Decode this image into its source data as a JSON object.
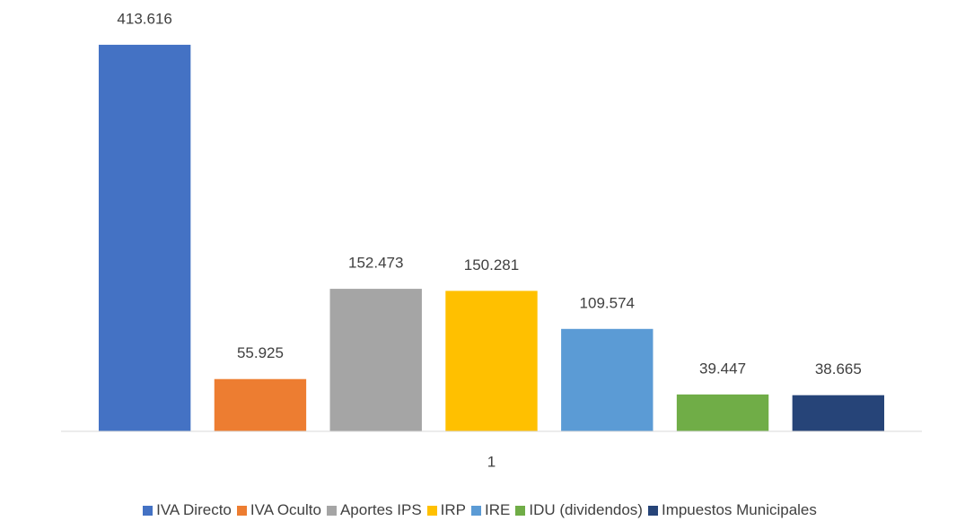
{
  "chart_data": {
    "type": "bar",
    "categories": [
      "1"
    ],
    "series": [
      {
        "name": "IVA Directo",
        "color": "#4472c4",
        "values": [
          413.616
        ]
      },
      {
        "name": "IVA Oculto",
        "color": "#ed7d31",
        "values": [
          55.925
        ]
      },
      {
        "name": "Aportes IPS",
        "color": "#a5a5a5",
        "values": [
          152.473
        ]
      },
      {
        "name": "IRP",
        "color": "#ffc000",
        "values": [
          150.281
        ]
      },
      {
        "name": "IRE",
        "color": "#5b9bd5",
        "values": [
          109.574
        ]
      },
      {
        "name": "IDU (dividendos)",
        "color": "#70ad47",
        "values": [
          39.447
        ]
      },
      {
        "name": "Impuestos Municipales",
        "color": "#264478",
        "values": [
          38.665
        ]
      }
    ],
    "ylim": [
      0,
      450
    ],
    "legend": "bottom"
  }
}
